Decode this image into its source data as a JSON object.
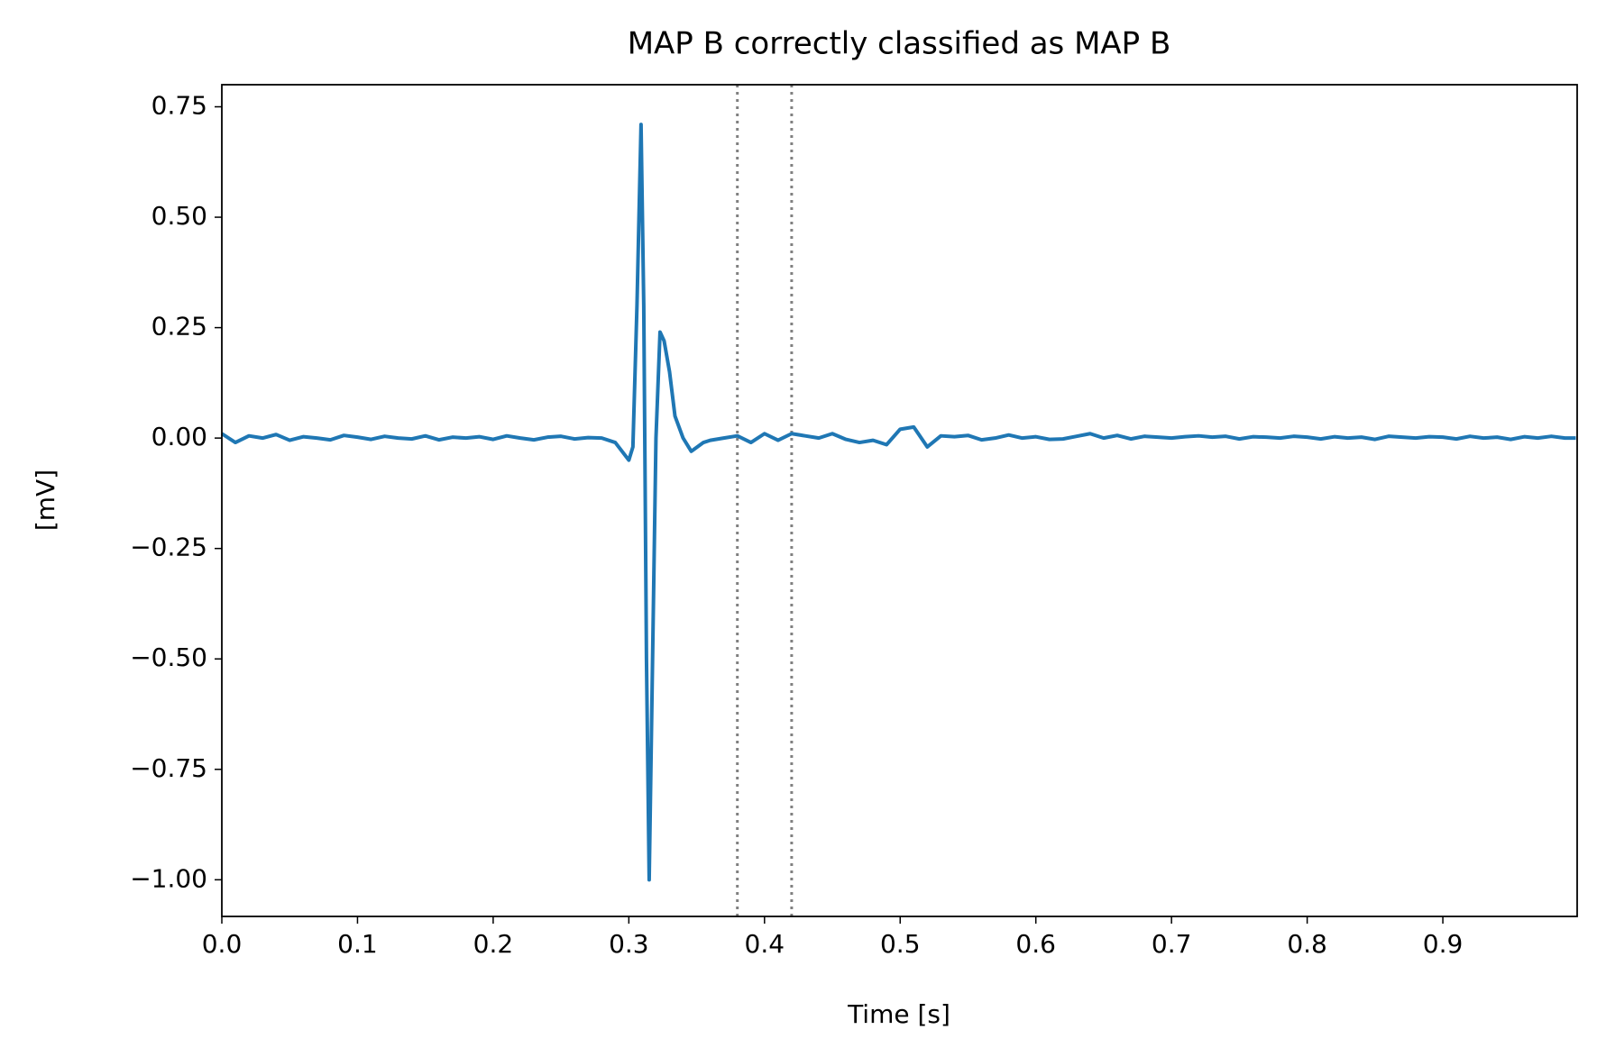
{
  "chart_data": {
    "type": "line",
    "title": "MAP B correctly classified as MAP B",
    "xlabel": "Time [s]",
    "ylabel": "[mV]",
    "x": [
      0,
      0.01,
      0.02,
      0.03,
      0.04,
      0.05,
      0.06,
      0.07,
      0.08,
      0.09,
      0.1,
      0.11,
      0.12,
      0.13,
      0.14,
      0.15,
      0.16,
      0.17,
      0.18,
      0.19,
      0.2,
      0.21,
      0.22,
      0.23,
      0.24,
      0.25,
      0.26,
      0.27,
      0.28,
      0.29,
      0.3,
      0.303,
      0.306,
      0.309,
      0.311,
      0.313,
      0.315,
      0.317,
      0.32,
      0.323,
      0.326,
      0.33,
      0.334,
      0.34,
      0.346,
      0.355,
      0.36,
      0.37,
      0.38,
      0.39,
      0.4,
      0.41,
      0.42,
      0.43,
      0.44,
      0.45,
      0.46,
      0.47,
      0.48,
      0.49,
      0.5,
      0.51,
      0.52,
      0.53,
      0.54,
      0.55,
      0.56,
      0.57,
      0.58,
      0.59,
      0.6,
      0.61,
      0.62,
      0.63,
      0.64,
      0.65,
      0.66,
      0.67,
      0.68,
      0.69,
      0.7,
      0.71,
      0.72,
      0.73,
      0.74,
      0.75,
      0.76,
      0.77,
      0.78,
      0.79,
      0.8,
      0.81,
      0.82,
      0.83,
      0.84,
      0.85,
      0.86,
      0.87,
      0.88,
      0.89,
      0.9,
      0.91,
      0.92,
      0.93,
      0.94,
      0.95,
      0.96,
      0.97,
      0.98,
      0.99,
      0.998
    ],
    "series": [
      {
        "color": "#1f77b4",
        "values": [
          0.01,
          -0.01,
          0.005,
          0.0,
          0.008,
          -0.005,
          0.003,
          0.0,
          -0.004,
          0.006,
          0.002,
          -0.003,
          0.004,
          0.0,
          -0.002,
          0.005,
          -0.004,
          0.002,
          0.0,
          0.003,
          -0.003,
          0.005,
          0.0,
          -0.004,
          0.002,
          0.004,
          -0.002,
          0.001,
          0.0,
          -0.01,
          -0.05,
          -0.02,
          0.3,
          0.71,
          0.3,
          -0.5,
          -1.0,
          -0.6,
          0.0,
          0.24,
          0.22,
          0.15,
          0.05,
          0.0,
          -0.03,
          -0.01,
          -0.005,
          0.0,
          0.005,
          -0.01,
          0.01,
          -0.005,
          0.01,
          0.005,
          0.0,
          0.01,
          -0.003,
          -0.01,
          -0.005,
          -0.015,
          0.02,
          0.025,
          -0.02,
          0.005,
          0.003,
          0.006,
          -0.004,
          0.0,
          0.007,
          0.0,
          0.003,
          -0.003,
          -0.002,
          0.004,
          0.01,
          0.0,
          0.006,
          -0.002,
          0.004,
          0.002,
          0.0,
          0.003,
          0.005,
          0.002,
          0.004,
          -0.002,
          0.003,
          0.002,
          0.0,
          0.004,
          0.002,
          -0.002,
          0.003,
          0.0,
          0.002,
          -0.003,
          0.004,
          0.002,
          0.0,
          0.003,
          0.002,
          -0.002,
          0.004,
          0.0,
          0.002,
          -0.003,
          0.003,
          0.0,
          0.004,
          0.0,
          0.0
        ]
      }
    ],
    "vlines": [
      0.38,
      0.42
    ],
    "vline_color": "#808080",
    "xlim": [
      0,
      0.999
    ],
    "xticks": [
      {
        "value": 0,
        "label": "0.0"
      },
      0.1,
      0.2,
      0.3,
      0.4,
      0.5,
      0.6,
      0.7,
      0.8,
      0.9
    ],
    "ylim": [
      -1.083,
      0.8
    ],
    "yticks": [
      {
        "value": -1,
        "label": "−1.00"
      },
      {
        "value": -0.75,
        "label": "−0.75"
      },
      {
        "value": -0.5,
        "label": "−0.50"
      },
      {
        "value": -0.25,
        "label": "−0.25"
      },
      {
        "value": 0,
        "label": "0.00"
      },
      0.25,
      {
        "value": 0.5,
        "label": "0.50"
      },
      0.75
    ]
  }
}
